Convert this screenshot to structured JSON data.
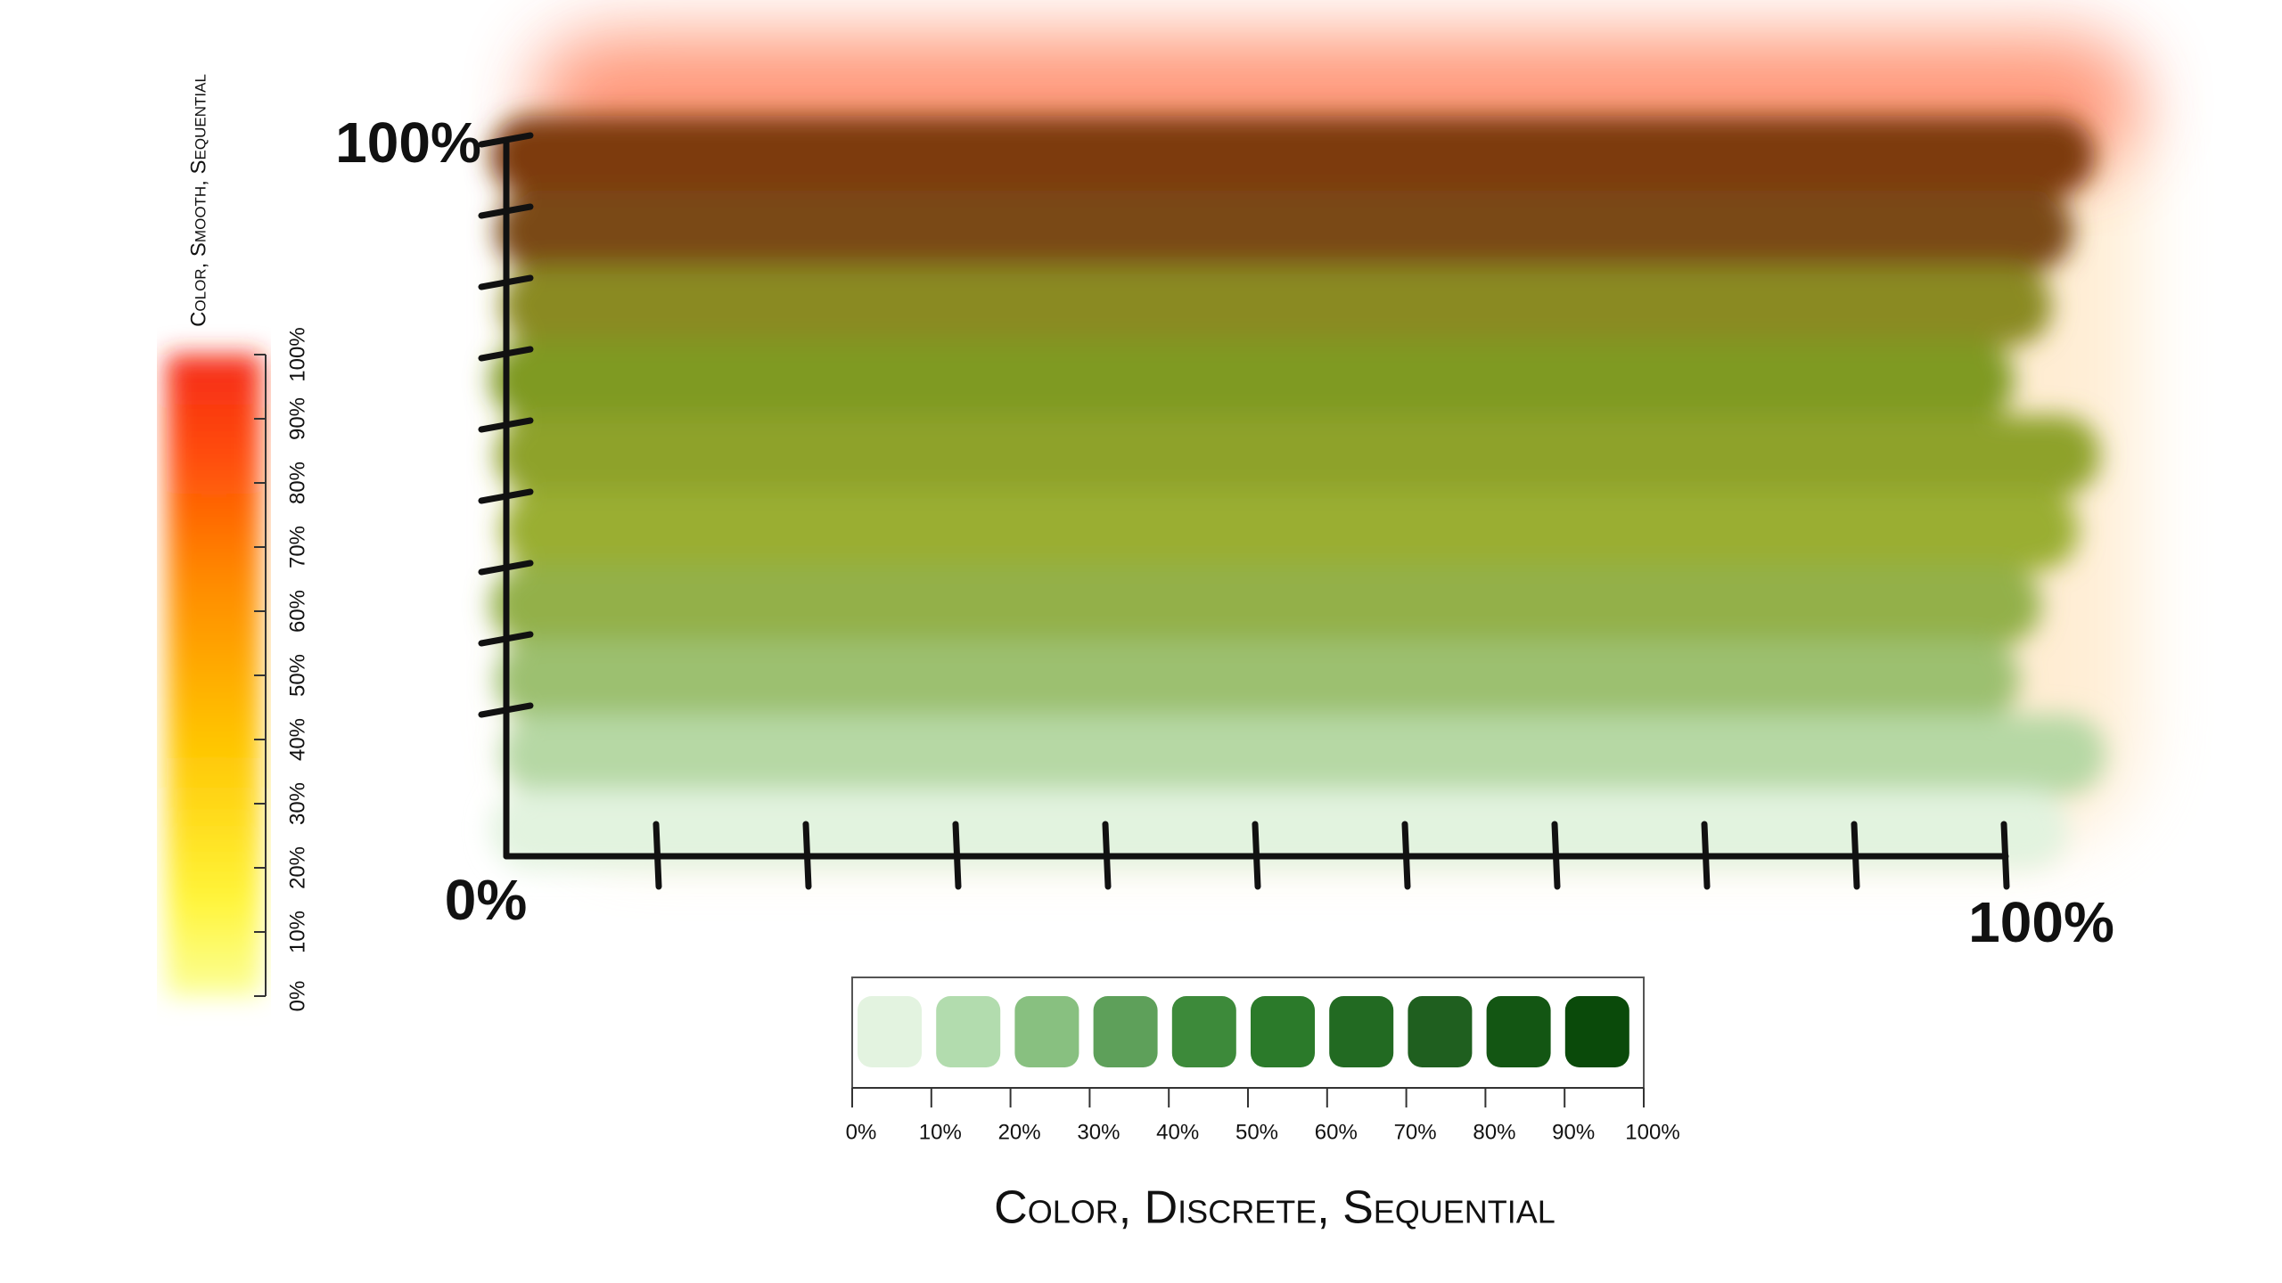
{
  "main_plot": {
    "y_axis": {
      "top_label": "100%",
      "origin_label": "0%"
    },
    "x_axis": {
      "end_label": "100%"
    }
  },
  "smooth_legend": {
    "title": "Color, Smooth, Sequential",
    "ticks": [
      "0%",
      "10%",
      "20%",
      "30%",
      "40%",
      "50%",
      "60%",
      "70%",
      "80%",
      "90%",
      "100%"
    ]
  },
  "discrete_legend": {
    "title": "Color, Discrete, Sequential",
    "ticks": [
      "0%",
      "10%",
      "20%",
      "30%",
      "40%",
      "50%",
      "60%",
      "70%",
      "80%",
      "90%",
      "100%"
    ]
  }
}
